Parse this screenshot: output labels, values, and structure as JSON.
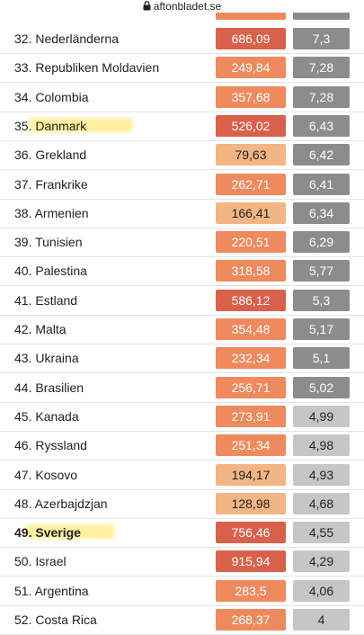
{
  "header": {
    "url": "aftonbladet.se"
  },
  "table": {
    "rows": [
      {
        "rank": "32.",
        "country": "Nederländerna",
        "value": "686,09",
        "value_color": "#d9614b",
        "score": "7,3",
        "score_color": "#8c8c8c"
      },
      {
        "rank": "33.",
        "country": "Republiken Moldavien",
        "value": "249,84",
        "value_color": "#ee8a5e",
        "score": "7,28",
        "score_color": "#8c8c8c"
      },
      {
        "rank": "34.",
        "country": "Colombia",
        "value": "357,68",
        "value_color": "#ee8a5e",
        "score": "7,28",
        "score_color": "#8c8c8c"
      },
      {
        "rank": "35.",
        "country": "Danmark",
        "value": "526,02",
        "value_color": "#d9614b",
        "score": "6,43",
        "score_color": "#8c8c8c",
        "highlight": true
      },
      {
        "rank": "36.",
        "country": "Grekland",
        "value": "79,63",
        "value_color": "#f3b583",
        "score": "6,42",
        "score_color": "#8c8c8c"
      },
      {
        "rank": "37.",
        "country": "Frankrike",
        "value": "262,71",
        "value_color": "#ee8a5e",
        "score": "6,41",
        "score_color": "#8c8c8c"
      },
      {
        "rank": "38.",
        "country": "Armenien",
        "value": "166,41",
        "value_color": "#f3b583",
        "score": "6,34",
        "score_color": "#8c8c8c"
      },
      {
        "rank": "39.",
        "country": "Tunisien",
        "value": "220,51",
        "value_color": "#ee8a5e",
        "score": "6,29",
        "score_color": "#8c8c8c"
      },
      {
        "rank": "40.",
        "country": "Palestina",
        "value": "318,58",
        "value_color": "#ee8a5e",
        "score": "5,77",
        "score_color": "#8c8c8c"
      },
      {
        "rank": "41.",
        "country": "Estland",
        "value": "586,12",
        "value_color": "#d9614b",
        "score": "5,3",
        "score_color": "#8c8c8c"
      },
      {
        "rank": "42.",
        "country": "Malta",
        "value": "354,48",
        "value_color": "#ee8a5e",
        "score": "5,17",
        "score_color": "#8c8c8c"
      },
      {
        "rank": "43.",
        "country": "Ukraina",
        "value": "232,34",
        "value_color": "#ee8a5e",
        "score": "5,1",
        "score_color": "#8c8c8c"
      },
      {
        "rank": "44.",
        "country": "Brasilien",
        "value": "256,71",
        "value_color": "#ee8a5e",
        "score": "5,02",
        "score_color": "#8c8c8c"
      },
      {
        "rank": "45.",
        "country": "Kanada",
        "value": "273,91",
        "value_color": "#ee8a5e",
        "score": "4,99",
        "score_color": "#c6c6c6"
      },
      {
        "rank": "46.",
        "country": "Ryssland",
        "value": "251,34",
        "value_color": "#ee8a5e",
        "score": "4,98",
        "score_color": "#c6c6c6"
      },
      {
        "rank": "47.",
        "country": "Kosovo",
        "value": "194,17",
        "value_color": "#f3b583",
        "score": "4,93",
        "score_color": "#c6c6c6"
      },
      {
        "rank": "48.",
        "country": "Azerbajdzjan",
        "value": "128,98",
        "value_color": "#f3b583",
        "score": "4,68",
        "score_color": "#c6c6c6"
      },
      {
        "rank": "49.",
        "country": "Sverige",
        "value": "756,46",
        "value_color": "#d9614b",
        "score": "4,55",
        "score_color": "#c6c6c6",
        "highlight": true,
        "bold": true
      },
      {
        "rank": "50.",
        "country": "Israel",
        "value": "915,94",
        "value_color": "#d9614b",
        "score": "4,29",
        "score_color": "#c6c6c6"
      },
      {
        "rank": "51.",
        "country": "Argentina",
        "value": "283,5",
        "value_color": "#ee8a5e",
        "score": "4,06",
        "score_color": "#c6c6c6"
      },
      {
        "rank": "52.",
        "country": "Costa Rica",
        "value": "268,37",
        "value_color": "#ee8a5e",
        "score": "4",
        "score_color": "#c6c6c6"
      }
    ]
  }
}
